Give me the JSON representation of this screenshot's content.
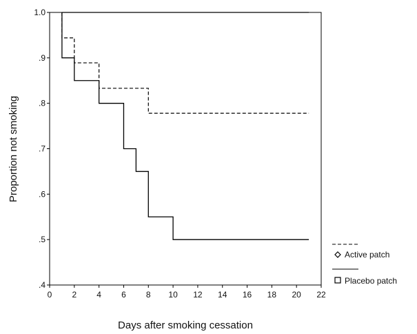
{
  "chart_data": {
    "type": "line",
    "xlabel": "Days after smoking cessation",
    "ylabel": "Proportion not smoking",
    "xlim": [
      0,
      22
    ],
    "ylim": [
      0.4,
      1.0
    ],
    "xticks": [
      "0",
      "2",
      "4",
      "6",
      "8",
      "10",
      "12",
      "14",
      "16",
      "18",
      "20",
      "22"
    ],
    "yticks": [
      ".4",
      ".5",
      ".6",
      ".7",
      ".8",
      ".9",
      "1.0"
    ],
    "grid": false,
    "legend_position": "bottom-right, outside plot",
    "series": [
      {
        "name": "Active patch",
        "marker": "diamond",
        "line_style": "dashed",
        "step": true,
        "x": [
          1,
          2,
          4,
          8,
          21
        ],
        "y": [
          0.944,
          0.889,
          0.833,
          0.778,
          0.778
        ]
      },
      {
        "name": "Placebo patch",
        "marker": "square",
        "line_style": "solid",
        "step": true,
        "x": [
          1,
          2,
          4,
          6,
          7,
          8,
          10,
          21
        ],
        "y": [
          0.9,
          0.85,
          0.8,
          0.7,
          0.65,
          0.55,
          0.5,
          0.5
        ]
      }
    ],
    "censor_line": {
      "y": 1.0,
      "x_start": 1,
      "x_end": 21
    }
  }
}
